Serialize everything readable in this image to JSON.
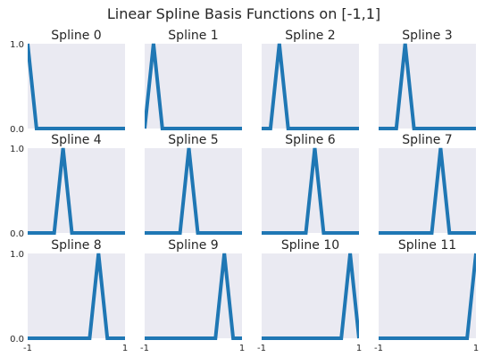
{
  "chart_data": {
    "type": "line",
    "title": "Linear Spline Basis Functions on [-1,1]",
    "layout": {
      "rows": 3,
      "cols": 4
    },
    "xlim": [
      -1,
      1
    ],
    "ylim": [
      0,
      1
    ],
    "x_tick_labels": [
      "-1",
      "1"
    ],
    "y_tick_labels": [
      "0.0",
      "1.0"
    ],
    "grid": false,
    "background_color": "#eaeaf2",
    "line_color": "#1f77b4",
    "knots": [
      -1,
      -0.818,
      -0.636,
      -0.455,
      -0.273,
      -0.091,
      0.091,
      0.273,
      0.455,
      0.636,
      0.818,
      1
    ],
    "panels": [
      {
        "title": "Spline 0",
        "peak_x": -1
      },
      {
        "title": "Spline 1",
        "peak_x": -0.818
      },
      {
        "title": "Spline 2",
        "peak_x": -0.636
      },
      {
        "title": "Spline 3",
        "peak_x": -0.455
      },
      {
        "title": "Spline 4",
        "peak_x": -0.273
      },
      {
        "title": "Spline 5",
        "peak_x": -0.091
      },
      {
        "title": "Spline 6",
        "peak_x": 0.091
      },
      {
        "title": "Spline 7",
        "peak_x": 0.273
      },
      {
        "title": "Spline 8",
        "peak_x": 0.455
      },
      {
        "title": "Spline 9",
        "peak_x": 0.636
      },
      {
        "title": "Spline 10",
        "peak_x": 0.818
      },
      {
        "title": "Spline 11",
        "peak_x": 1
      }
    ]
  }
}
